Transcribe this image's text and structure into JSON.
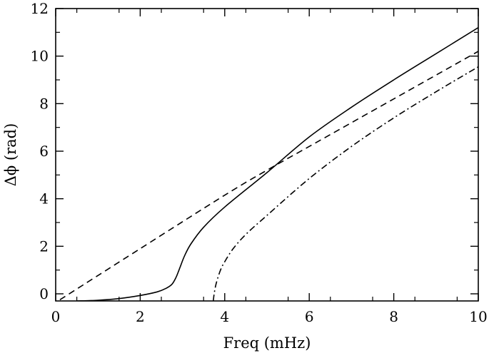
{
  "chart_data": {
    "type": "line",
    "title": "",
    "xlabel": "Freq (mHz)",
    "ylabel": "Δϕ (rad)",
    "xlim": [
      0,
      10
    ],
    "ylim": [
      -0.3,
      12
    ],
    "xticks": [
      0,
      2,
      4,
      6,
      8,
      10
    ],
    "yticks": [
      0,
      2,
      4,
      6,
      8,
      10,
      12
    ],
    "xtick_labels": [
      "0",
      "2",
      "4",
      "6",
      "8",
      "10"
    ],
    "ytick_labels": [
      "0",
      "2",
      "4",
      "6",
      "8",
      "10",
      "12"
    ],
    "grid": false,
    "legend": "none",
    "series": [
      {
        "style": "solid",
        "color": "#000000",
        "x": [
          0.5,
          1.0,
          1.5,
          2.0,
          2.4,
          2.6,
          2.75,
          2.85,
          2.95,
          3.05,
          3.2,
          3.5,
          4.0,
          5.0,
          6.0,
          7.0,
          8.0,
          9.0,
          10.0
        ],
        "y": [
          -0.3,
          -0.27,
          -0.2,
          -0.07,
          0.08,
          0.22,
          0.4,
          0.7,
          1.15,
          1.6,
          2.1,
          2.8,
          3.65,
          5.1,
          6.6,
          7.85,
          9.0,
          10.1,
          11.2
        ]
      },
      {
        "style": "dashed",
        "color": "#000000",
        "x": [
          0.1,
          2.0,
          4.0,
          5.0,
          6.0,
          8.0,
          10.0
        ],
        "y": [
          -0.25,
          1.9,
          4.15,
          5.2,
          6.2,
          8.2,
          10.2
        ]
      },
      {
        "style": "dash-dot",
        "color": "#000000",
        "x": [
          3.73,
          3.75,
          3.8,
          3.9,
          4.0,
          4.2,
          4.5,
          5.0,
          6.0,
          7.0,
          8.0,
          9.0,
          10.0
        ],
        "y": [
          -0.3,
          0.0,
          0.45,
          1.0,
          1.35,
          1.9,
          2.5,
          3.3,
          4.85,
          6.2,
          7.4,
          8.5,
          9.55
        ]
      }
    ]
  }
}
